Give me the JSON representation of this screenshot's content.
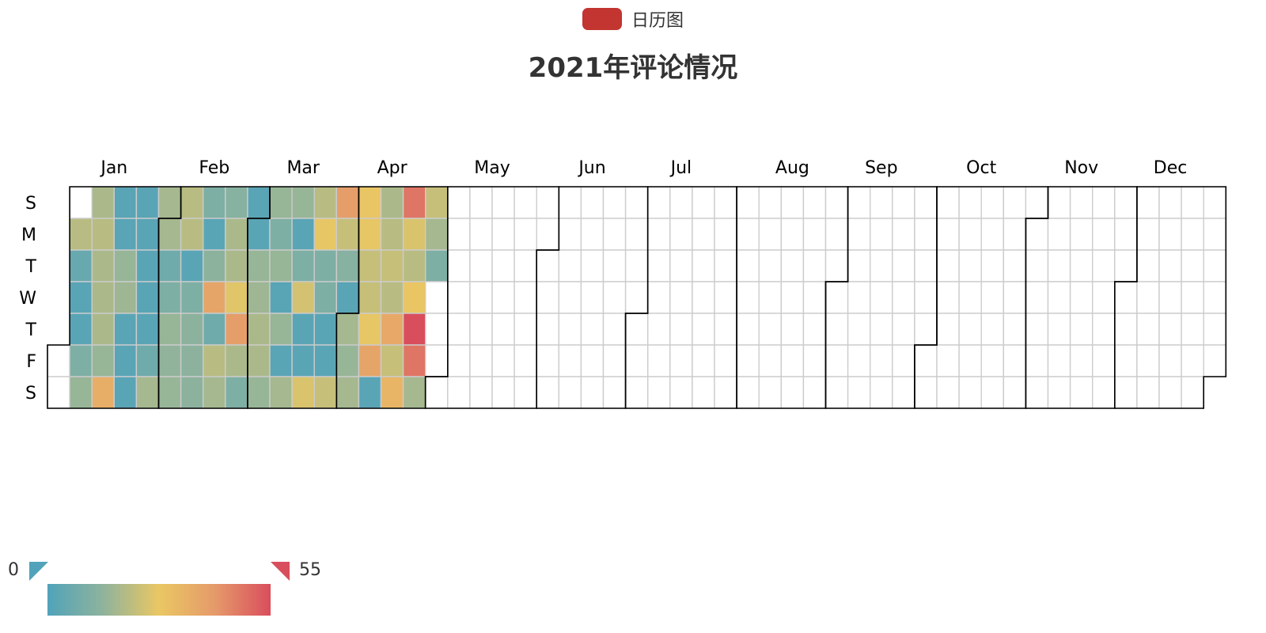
{
  "legend": {
    "label": "日历图",
    "color": "#c23531"
  },
  "title": "2021年评论情况",
  "visual_map": {
    "min_label": "0",
    "max_label": "55",
    "colors": [
      "#50a3ba",
      "#8fb39c",
      "#eac763",
      "#e59a6a",
      "#d94e5d"
    ]
  },
  "chart_data": {
    "type": "heatmap",
    "calendar": "calendar",
    "range": "2021",
    "value_range": [
      0,
      55
    ],
    "day_labels": [
      "S",
      "M",
      "T",
      "W",
      "T",
      "F",
      "S"
    ],
    "month_labels": [
      "Jan",
      "Feb",
      "Mar",
      "Apr",
      "May",
      "Jun",
      "Jul",
      "Aug",
      "Sep",
      "Oct",
      "Nov",
      "Dec"
    ],
    "series_name": "日历图",
    "weeks": [
      [
        null,
        null,
        null,
        null,
        null,
        null,
        null
      ],
      [
        null,
        20,
        5,
        2,
        2,
        10,
        15
      ],
      [
        18,
        20,
        18,
        18,
        18,
        15,
        35
      ],
      [
        2,
        2,
        15,
        16,
        2,
        2,
        2
      ],
      [
        2,
        2,
        2,
        2,
        2,
        7,
        17
      ],
      [
        17,
        17,
        7,
        10,
        15,
        14,
        15
      ],
      [
        20,
        20,
        2,
        10,
        13,
        13,
        13
      ],
      [
        10,
        2,
        13,
        38,
        7,
        20,
        17
      ],
      [
        12,
        18,
        18,
        26,
        40,
        18,
        10
      ],
      [
        2,
        2,
        15,
        16,
        18,
        18,
        15
      ],
      [
        15,
        10,
        15,
        2,
        15,
        2,
        17
      ],
      [
        15,
        2,
        10,
        24,
        2,
        2,
        25
      ],
      [
        20,
        27,
        10,
        10,
        2,
        2,
        22
      ],
      [
        40,
        22,
        12,
        2,
        17,
        15,
        17
      ],
      [
        28,
        27,
        22,
        22,
        27,
        38,
        2
      ],
      [
        18,
        20,
        22,
        20,
        37,
        22,
        33
      ],
      [
        48,
        25,
        20,
        28,
        55,
        48,
        17
      ],
      [
        22,
        17,
        10,
        null,
        null,
        null,
        null
      ]
    ]
  }
}
